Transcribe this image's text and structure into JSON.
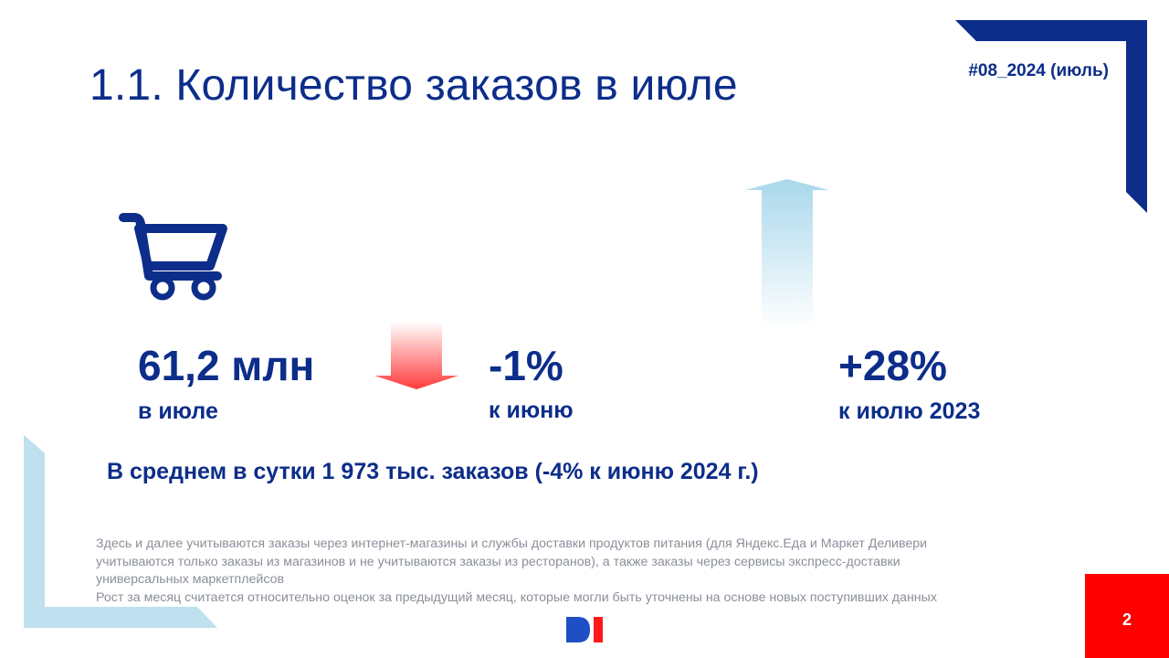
{
  "title": "1.1. Количество заказов в июле",
  "issue_tag": "#08_2024 (июль)",
  "metrics": {
    "total": {
      "value": "61,2 млн",
      "label": "в июле"
    },
    "mom": {
      "value": "-1%",
      "label": "к июню",
      "direction": "down"
    },
    "yoy": {
      "value": "+28%",
      "label": "к июлю 2023",
      "direction": "up"
    }
  },
  "daily_summary": "В среднем в сутки 1 973 тыс. заказов (-4% к июню 2024 г.)",
  "notes": [
    "Здесь и далее учитываются заказы через интернет-магазины и службы доставки продуктов питания (для Яндекс.Еда и Маркет Деливери",
    "учитываются только заказы из магазинов и не учитываются заказы из ресторанов), а также заказы через сервисы экспресс-доставки",
    "универсальных маркетплейсов",
    "Рост за месяц считается относительно оценок за предыдущий месяц, которые могли быть уточнены на основе новых поступивших данных"
  ],
  "page_number": "2",
  "icons": [
    "shopping-cart-icon",
    "arrow-down-icon",
    "arrow-up-icon",
    "brand-logo"
  ],
  "colors": {
    "primary": "#0c2d8a",
    "accent_red": "#ff0000",
    "light_blue": "#bfe0ee",
    "notes_gray": "#8a8f99"
  }
}
